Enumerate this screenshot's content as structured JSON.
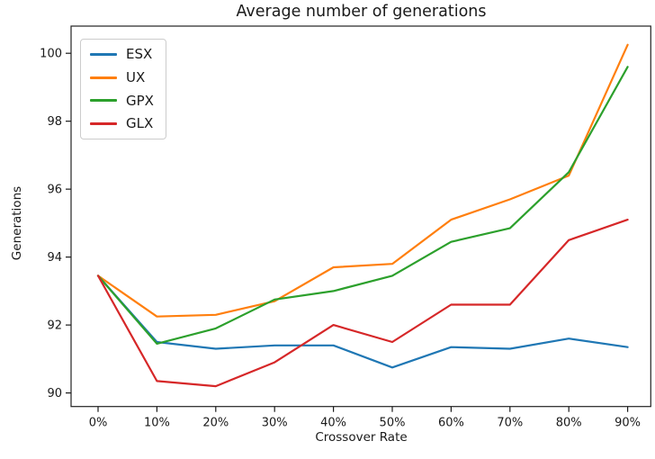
{
  "figure": {
    "title": "Average number of generations",
    "xlabel": "Crossover Rate",
    "ylabel": "Generations"
  },
  "chart_data": {
    "type": "line",
    "title": "Average number of generations",
    "xlabel": "Crossover Rate",
    "ylabel": "Generations",
    "categories": [
      "0%",
      "10%",
      "20%",
      "30%",
      "40%",
      "50%",
      "60%",
      "70%",
      "80%",
      "90%"
    ],
    "yticks": [
      90,
      92,
      94,
      96,
      98,
      100
    ],
    "ylim": [
      89.6,
      100.8
    ],
    "grid": false,
    "legend_position": "upper left",
    "series": [
      {
        "name": "ESX",
        "color": "#1f77b4",
        "values": [
          93.45,
          91.5,
          91.3,
          91.4,
          91.4,
          90.75,
          91.35,
          91.3,
          91.6,
          91.35
        ]
      },
      {
        "name": "UX",
        "color": "#ff7f0e",
        "values": [
          93.45,
          92.25,
          92.3,
          92.7,
          93.7,
          93.8,
          95.1,
          95.7,
          96.4,
          100.25
        ]
      },
      {
        "name": "GPX",
        "color": "#2ca02c",
        "values": [
          93.45,
          91.45,
          91.9,
          92.75,
          93.0,
          93.45,
          94.45,
          94.85,
          96.5,
          99.6
        ]
      },
      {
        "name": "GLX",
        "color": "#d62728",
        "values": [
          93.45,
          90.35,
          90.2,
          90.9,
          92.0,
          91.5,
          92.6,
          92.6,
          94.5,
          95.1
        ]
      }
    ]
  }
}
